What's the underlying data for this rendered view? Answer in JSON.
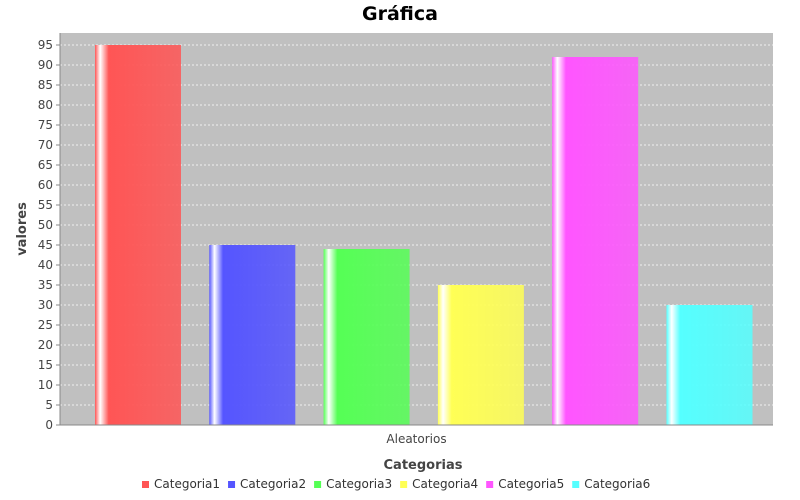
{
  "chart_data": {
    "type": "bar",
    "title": "Gráfica",
    "xlabel": "Categorias",
    "ylabel": "valores",
    "categories": [
      "Aleatorios"
    ],
    "series": [
      {
        "name": "Categoria1",
        "color": "#ff5555",
        "values": [
          95
        ]
      },
      {
        "name": "Categoria2",
        "color": "#5555ff",
        "values": [
          45
        ]
      },
      {
        "name": "Categoria3",
        "color": "#55ff55",
        "values": [
          44
        ]
      },
      {
        "name": "Categoria4",
        "color": "#ffff55",
        "values": [
          35
        ]
      },
      {
        "name": "Categoria5",
        "color": "#ff55ff",
        "values": [
          92
        ]
      },
      {
        "name": "Categoria6",
        "color": "#55ffff",
        "values": [
          30
        ]
      }
    ],
    "ylim": [
      0,
      98
    ],
    "yticks": [
      0,
      5,
      10,
      15,
      20,
      25,
      30,
      35,
      40,
      45,
      50,
      55,
      60,
      65,
      70,
      75,
      80,
      85,
      90,
      95
    ],
    "grid": true,
    "legend": "bottom",
    "plot_background": "#c0c0c0"
  }
}
